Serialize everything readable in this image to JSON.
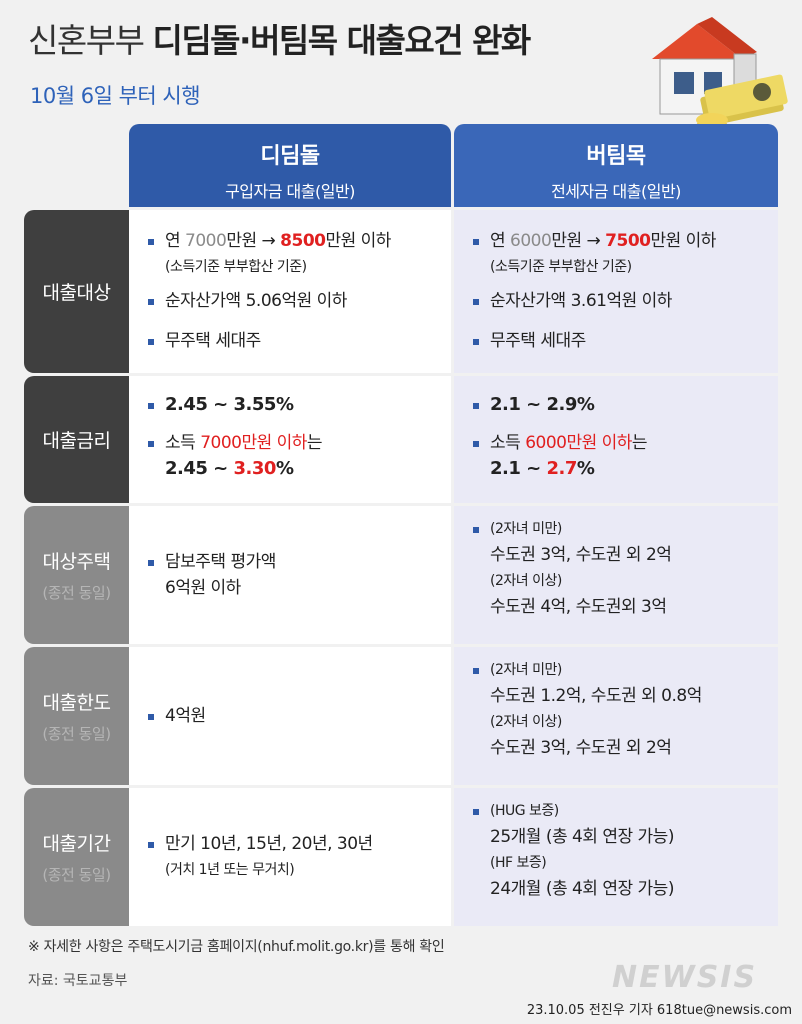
{
  "header": {
    "title_light": "신혼부부",
    "title_bold": "디딤돌·버팀목 대출요건 완화",
    "subtitle": "10월 6일 부터 시행"
  },
  "columns": [
    {
      "name": "디딤돌",
      "desc": "구입자금 대출(일반)",
      "color": "#2f5aa8"
    },
    {
      "name": "버팀목",
      "desc": "전세자금 대출(일반)",
      "color": "#3a67b8"
    }
  ],
  "rows": {
    "target": {
      "label": "대출대상",
      "c1": {
        "l1_a": "연 ",
        "l1_old": "7000",
        "l1_b": "만원 → ",
        "l1_new": "8500",
        "l1_c": "만원 이하",
        "l1_note": "(소득기준 부부합산 기준)",
        "l2": "순자산가액 5.06억원 이하",
        "l3": "무주택 세대주"
      },
      "c2": {
        "l1_a": "연 ",
        "l1_old": "6000",
        "l1_b": "만원 → ",
        "l1_new": "7500",
        "l1_c": "만원 이하",
        "l1_note": "(소득기준 부부합산 기준)",
        "l2": "순자산가액 3.61억원 이하",
        "l3": "무주택 세대주"
      }
    },
    "rate": {
      "label": "대출금리",
      "c1": {
        "range": "2.45 ~ 3.55%",
        "cond_a": "소득 ",
        "cond_red": "7000만원 이하",
        "cond_b": "는",
        "range2_a": "2.45 ~ ",
        "range2_red": "3.30",
        "range2_b": "%"
      },
      "c2": {
        "range": "2.1 ~ 2.9%",
        "cond_a": "소득 ",
        "cond_red": "6000만원 이하",
        "cond_b": "는",
        "range2_a": "2.1 ~ ",
        "range2_red": "2.7",
        "range2_b": "%"
      }
    },
    "house": {
      "label": "대상주택",
      "sub": "(종전 동일)",
      "c1": {
        "l1": "담보주택 평가액",
        "l2": "6억원 이하"
      },
      "c2": {
        "g1": "(2자녀 미만)",
        "v1": "수도권 3억, 수도권 외 2억",
        "g2": "(2자녀 이상)",
        "v2": "수도권 4억, 수도권외 3억"
      }
    },
    "limit": {
      "label": "대출한도",
      "sub": "(종전 동일)",
      "c1": {
        "l1": "4억원"
      },
      "c2": {
        "g1": "(2자녀 미만)",
        "v1": "수도권 1.2억, 수도권 외 0.8억",
        "g2": "(2자녀 이상)",
        "v2": "수도권 3억, 수도권 외 2억"
      }
    },
    "period": {
      "label": "대출기간",
      "sub": "(종전 동일)",
      "c1": {
        "l1": "만기 10년, 15년, 20년, 30년",
        "l2": "(거치 1년 또는 무거치)"
      },
      "c2": {
        "g1": "(HUG 보증)",
        "v1": "25개월 (총 4회 연장 가능)",
        "g2": "(HF 보증)",
        "v2": "24개월 (총 4회 연장 가능)"
      }
    }
  },
  "footer": {
    "note": "※ 자세한 사항은 주택도시기금 홈페이지(nhuf.molit.go.kr)를 통해 확인",
    "source": "자료: 국토교통부",
    "logo": "NEWSIS",
    "credit": "23.10.05 전진우 기자 618tue@newsis.com"
  }
}
